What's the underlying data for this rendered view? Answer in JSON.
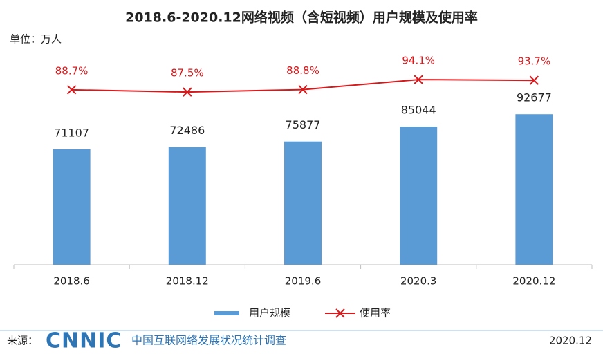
{
  "chart_data": {
    "type": "bar-line",
    "title": "2018.6-2020.12网络视频（含短视频）用户规模及使用率",
    "unit": "单位：万人",
    "categories": [
      "2018.6",
      "2018.12",
      "2019.6",
      "2020.3",
      "2020.12"
    ],
    "series": [
      {
        "name": "用户规模",
        "color": "#5b9bd5",
        "values": [
          71107,
          72486,
          75877,
          85044,
          92677
        ]
      },
      {
        "name": "使用率",
        "color": "#d7191c",
        "axis": "y2",
        "values": [
          88.7,
          87.5,
          88.8,
          94.1,
          93.7
        ],
        "value_labels": [
          "88.7%",
          "87.5%",
          "88.8%",
          "94.1%",
          "93.7%"
        ]
      }
    ],
    "ylim": [
      0,
      100000
    ],
    "y2lim": [
      80,
      100
    ],
    "legend": "bottom"
  },
  "footer": {
    "source_label": "来源：",
    "logo": "CNNIC",
    "org": "中国互联网络发展状况统计调查",
    "date": "2020.12"
  }
}
